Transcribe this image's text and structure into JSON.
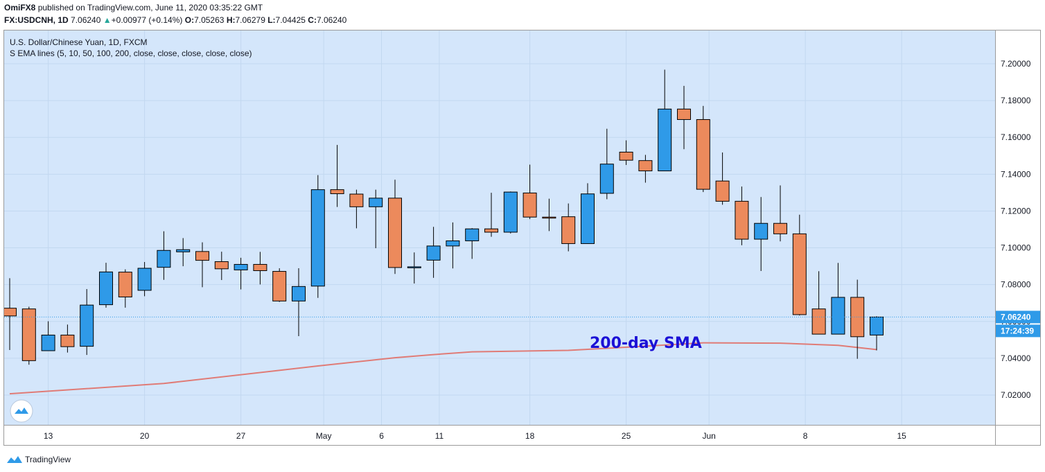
{
  "header": {
    "author": "OmiFX8",
    "published_text": "published on TradingView.com, June 11, 2020 03:35:22 GMT",
    "symbol": "FX:USDCNH, 1D",
    "last": "7.06240",
    "change_arrow": "▲",
    "change": "+0.00977 (+0.14%)",
    "o_label": "O:",
    "o": "7.05263",
    "h_label": "H:",
    "h": "7.06279",
    "l_label": "L:",
    "l": "7.04425",
    "c_label": "C:",
    "c": "7.06240"
  },
  "legend": {
    "title": "U.S. Dollar/Chinese Yuan, 1D, FXCM",
    "indicator": "S EMA lines (5, 10, 50, 100, 200, close, close, close, close, close)"
  },
  "footer": {
    "brand": "TradingView"
  },
  "colors": {
    "background": "#d4e6fb",
    "grid": "#c2d8f0",
    "up": "#2f9ae8",
    "down": "#ec8a5c",
    "sma": "#e07b76",
    "annotation": "#1b10d6",
    "price_label": "#2f9ae8",
    "timer_label": "#2f9ae8"
  },
  "chart_data": {
    "type": "candlestick",
    "title": "U.S. Dollar/Chinese Yuan, 1D, FXCM",
    "ylim": [
      7.0,
      7.21
    ],
    "y_ticks": [
      "7.02000",
      "7.04000",
      "7.06000",
      "7.08000",
      "7.10000",
      "7.12000",
      "7.14000",
      "7.16000",
      "7.18000",
      "7.20000"
    ],
    "x_ticks": [
      "13",
      "20",
      "27",
      "May",
      "6",
      "11",
      "18",
      "25",
      "Jun",
      "8",
      "15"
    ],
    "current_price_label": "7.06240",
    "countdown_label": "17:24:39",
    "annotation": "200-day SMA",
    "candles": [
      {
        "o": 7.0672,
        "h": 7.0835,
        "l": 7.0445,
        "c": 7.063
      },
      {
        "o": 7.0668,
        "h": 7.068,
        "l": 7.0365,
        "c": 7.0387
      },
      {
        "o": 7.0441,
        "h": 7.0601,
        "l": 7.044,
        "c": 7.0526
      },
      {
        "o": 7.0526,
        "h": 7.0583,
        "l": 7.0431,
        "c": 7.0463
      },
      {
        "o": 7.0465,
        "h": 7.0776,
        "l": 7.0418,
        "c": 7.0689
      },
      {
        "o": 7.0691,
        "h": 7.0919,
        "l": 7.0675,
        "c": 7.0869
      },
      {
        "o": 7.0868,
        "h": 7.0883,
        "l": 7.0675,
        "c": 7.0733
      },
      {
        "o": 7.0769,
        "h": 7.0923,
        "l": 7.0737,
        "c": 7.0889
      },
      {
        "o": 7.0894,
        "h": 7.109,
        "l": 7.0826,
        "c": 7.0986
      },
      {
        "o": 7.0978,
        "h": 7.1053,
        "l": 7.09,
        "c": 7.099
      },
      {
        "o": 7.098,
        "h": 7.103,
        "l": 7.0786,
        "c": 7.0932
      },
      {
        "o": 7.0925,
        "h": 7.0979,
        "l": 7.0825,
        "c": 7.0886
      },
      {
        "o": 7.088,
        "h": 7.0946,
        "l": 7.0774,
        "c": 7.091
      },
      {
        "o": 7.091,
        "h": 7.0978,
        "l": 7.0801,
        "c": 7.0876
      },
      {
        "o": 7.0872,
        "h": 7.0889,
        "l": 7.0706,
        "c": 7.0711
      },
      {
        "o": 7.0711,
        "h": 7.0889,
        "l": 7.052,
        "c": 7.079
      },
      {
        "o": 7.0792,
        "h": 7.1395,
        "l": 7.0728,
        "c": 7.1316
      },
      {
        "o": 7.1316,
        "h": 7.1559,
        "l": 7.1222,
        "c": 7.1294
      },
      {
        "o": 7.1292,
        "h": 7.1316,
        "l": 7.1106,
        "c": 7.1223
      },
      {
        "o": 7.1223,
        "h": 7.1316,
        "l": 7.0998,
        "c": 7.127
      },
      {
        "o": 7.127,
        "h": 7.137,
        "l": 7.0858,
        "c": 7.0893
      },
      {
        "o": 7.0893,
        "h": 7.0975,
        "l": 7.0806,
        "c": 7.0897
      },
      {
        "o": 7.0933,
        "h": 7.1114,
        "l": 7.0837,
        "c": 7.101
      },
      {
        "o": 7.101,
        "h": 7.1138,
        "l": 7.0888,
        "c": 7.1038
      },
      {
        "o": 7.1038,
        "h": 7.1107,
        "l": 7.094,
        "c": 7.1103
      },
      {
        "o": 7.1103,
        "h": 7.1299,
        "l": 7.106,
        "c": 7.1085
      },
      {
        "o": 7.1085,
        "h": 7.1306,
        "l": 7.1078,
        "c": 7.1303
      },
      {
        "o": 7.1298,
        "h": 7.1452,
        "l": 7.1156,
        "c": 7.1167
      },
      {
        "o": 7.1167,
        "h": 7.1267,
        "l": 7.1091,
        "c": 7.1164
      },
      {
        "o": 7.1169,
        "h": 7.1241,
        "l": 7.0981,
        "c": 7.1023
      },
      {
        "o": 7.1023,
        "h": 7.1351,
        "l": 7.1022,
        "c": 7.1293
      },
      {
        "o": 7.1296,
        "h": 7.1647,
        "l": 7.1264,
        "c": 7.1455
      },
      {
        "o": 7.152,
        "h": 7.1584,
        "l": 7.145,
        "c": 7.1476
      },
      {
        "o": 7.1474,
        "h": 7.1505,
        "l": 7.1354,
        "c": 7.1418
      },
      {
        "o": 7.1418,
        "h": 7.1968,
        "l": 7.1418,
        "c": 7.1754
      },
      {
        "o": 7.1754,
        "h": 7.188,
        "l": 7.1536,
        "c": 7.1697
      },
      {
        "o": 7.1697,
        "h": 7.1771,
        "l": 7.1303,
        "c": 7.1318
      },
      {
        "o": 7.1363,
        "h": 7.1518,
        "l": 7.1234,
        "c": 7.1253
      },
      {
        "o": 7.1253,
        "h": 7.1333,
        "l": 7.1014,
        "c": 7.1047
      },
      {
        "o": 7.1047,
        "h": 7.1276,
        "l": 7.0874,
        "c": 7.1133
      },
      {
        "o": 7.1133,
        "h": 7.1339,
        "l": 7.1035,
        "c": 7.1076
      },
      {
        "o": 7.1076,
        "h": 7.118,
        "l": 7.0632,
        "c": 7.0637
      },
      {
        "o": 7.0668,
        "h": 7.0873,
        "l": 7.053,
        "c": 7.0531
      },
      {
        "o": 7.0531,
        "h": 7.0918,
        "l": 7.0531,
        "c": 7.0731
      },
      {
        "o": 7.0731,
        "h": 7.0827,
        "l": 7.0397,
        "c": 7.0517
      },
      {
        "o": 7.0526,
        "h": 7.0628,
        "l": 7.0443,
        "c": 7.0624
      }
    ],
    "sma200": [
      {
        "i": 0,
        "v": 7.0207
      },
      {
        "i": 8,
        "v": 7.0263
      },
      {
        "i": 16,
        "v": 7.0358
      },
      {
        "i": 20,
        "v": 7.0403
      },
      {
        "i": 22,
        "v": 7.042
      },
      {
        "i": 24,
        "v": 7.0435
      },
      {
        "i": 29,
        "v": 7.0443
      },
      {
        "i": 32,
        "v": 7.046
      },
      {
        "i": 36,
        "v": 7.0484
      },
      {
        "i": 40,
        "v": 7.0482
      },
      {
        "i": 43,
        "v": 7.047
      },
      {
        "i": 45,
        "v": 7.0447
      }
    ]
  }
}
